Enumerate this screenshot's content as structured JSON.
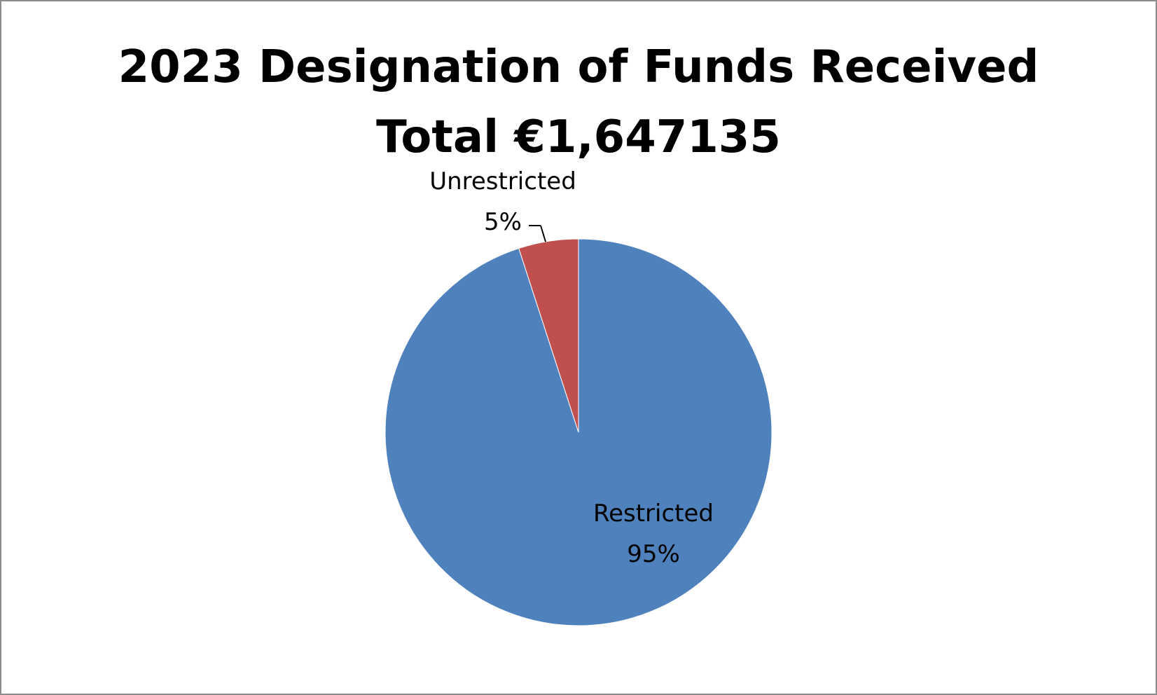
{
  "chart_data": {
    "type": "pie",
    "title": "2023 Designation of Funds Received",
    "subtitle": "Total €1,647135",
    "slices": [
      {
        "name": "Restricted",
        "value": 95,
        "label": "95%",
        "color": "#4f81bd"
      },
      {
        "name": "Unrestricted",
        "value": 5,
        "label": "5%",
        "color": "#c0504d"
      }
    ],
    "start_angle_deg": 0,
    "direction": "clockwise",
    "legend": "none"
  }
}
